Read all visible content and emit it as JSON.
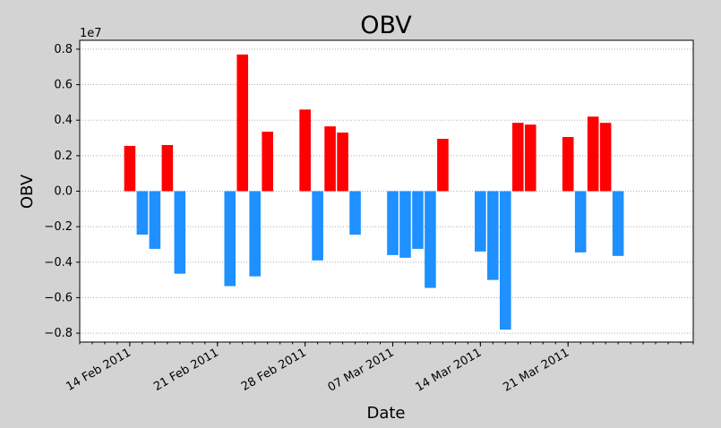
{
  "chart_data": {
    "type": "bar",
    "title": "OBV",
    "xlabel": "Date",
    "ylabel": "OBV",
    "y_offset_label": "1e7",
    "y_scale": 10000000,
    "ylim": [
      -8500000.0,
      8500000.0
    ],
    "xlim": [
      "2011-02-10",
      "2011-03-31"
    ],
    "yticks": [
      0.8,
      0.6,
      0.4,
      0.2,
      0.0,
      -0.2,
      -0.4,
      -0.6,
      -0.8
    ],
    "ytick_labels": [
      "0.8",
      "0.6",
      "0.4",
      "0.2",
      "0.0",
      "−0.2",
      "−0.4",
      "−0.6",
      "−0.8"
    ],
    "xticks": [
      "2011-02-14",
      "2011-02-21",
      "2011-02-28",
      "2011-03-07",
      "2011-03-14",
      "2011-03-21"
    ],
    "xtick_labels": [
      "14 Feb 2011",
      "21 Feb 2011",
      "28 Feb 2011",
      "07 Mar 2011",
      "14 Mar 2011",
      "21 Mar 2011"
    ],
    "grid": "y-dotted",
    "colors": {
      "positive": "#ff0000",
      "negative": "#1e90ff"
    },
    "x": [
      "2011-02-14",
      "2011-02-15",
      "2011-02-16",
      "2011-02-17",
      "2011-02-18",
      "2011-02-22",
      "2011-02-23",
      "2011-02-24",
      "2011-02-25",
      "2011-02-28",
      "2011-03-01",
      "2011-03-02",
      "2011-03-03",
      "2011-03-04",
      "2011-03-07",
      "2011-03-08",
      "2011-03-09",
      "2011-03-10",
      "2011-03-11",
      "2011-03-14",
      "2011-03-15",
      "2011-03-16",
      "2011-03-17",
      "2011-03-18",
      "2011-03-21",
      "2011-03-22",
      "2011-03-23",
      "2011-03-24",
      "2011-03-25"
    ],
    "values": [
      2550000,
      -2450000,
      -3250000,
      2600000,
      -4650000,
      -5350000,
      7700000,
      -4800000,
      3350000,
      4600000,
      -3900000,
      3650000,
      3300000,
      -2450000,
      -3600000,
      -3750000,
      -3250000,
      -5450000,
      2950000,
      -3400000,
      -5000000,
      -7800000,
      3850000,
      3750000,
      3050000,
      -3450000,
      4200000,
      3850000,
      -3650000
    ]
  }
}
